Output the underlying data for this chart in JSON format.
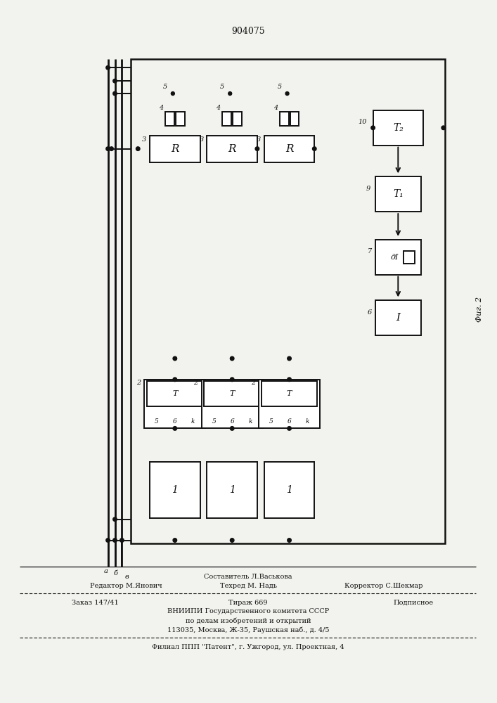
{
  "title": "904075",
  "fig_label": "Фиг. 2",
  "bg": "#f2f2ee",
  "lc": "#111111",
  "footer": {
    "editor": "Редактор М.Янович",
    "composer": "Составитель Л.Васькова",
    "techred": "Техред М. Надь",
    "corrector": "Корректор С.Шекмар",
    "order": "Заказ 147/41",
    "tirazh": "Тираж 669",
    "podpisnoe": "Подписное",
    "vniip1": "ВНИИПИ Государственного комитета СССР",
    "vniip2": "по делам изобретений и открытий",
    "address": "113035, Москва, Ж-35, Раушская наб., д. 4/5",
    "filial": "Филиал ППП \"Патент\", г. Ужгород, ул. Проектная, 4"
  }
}
